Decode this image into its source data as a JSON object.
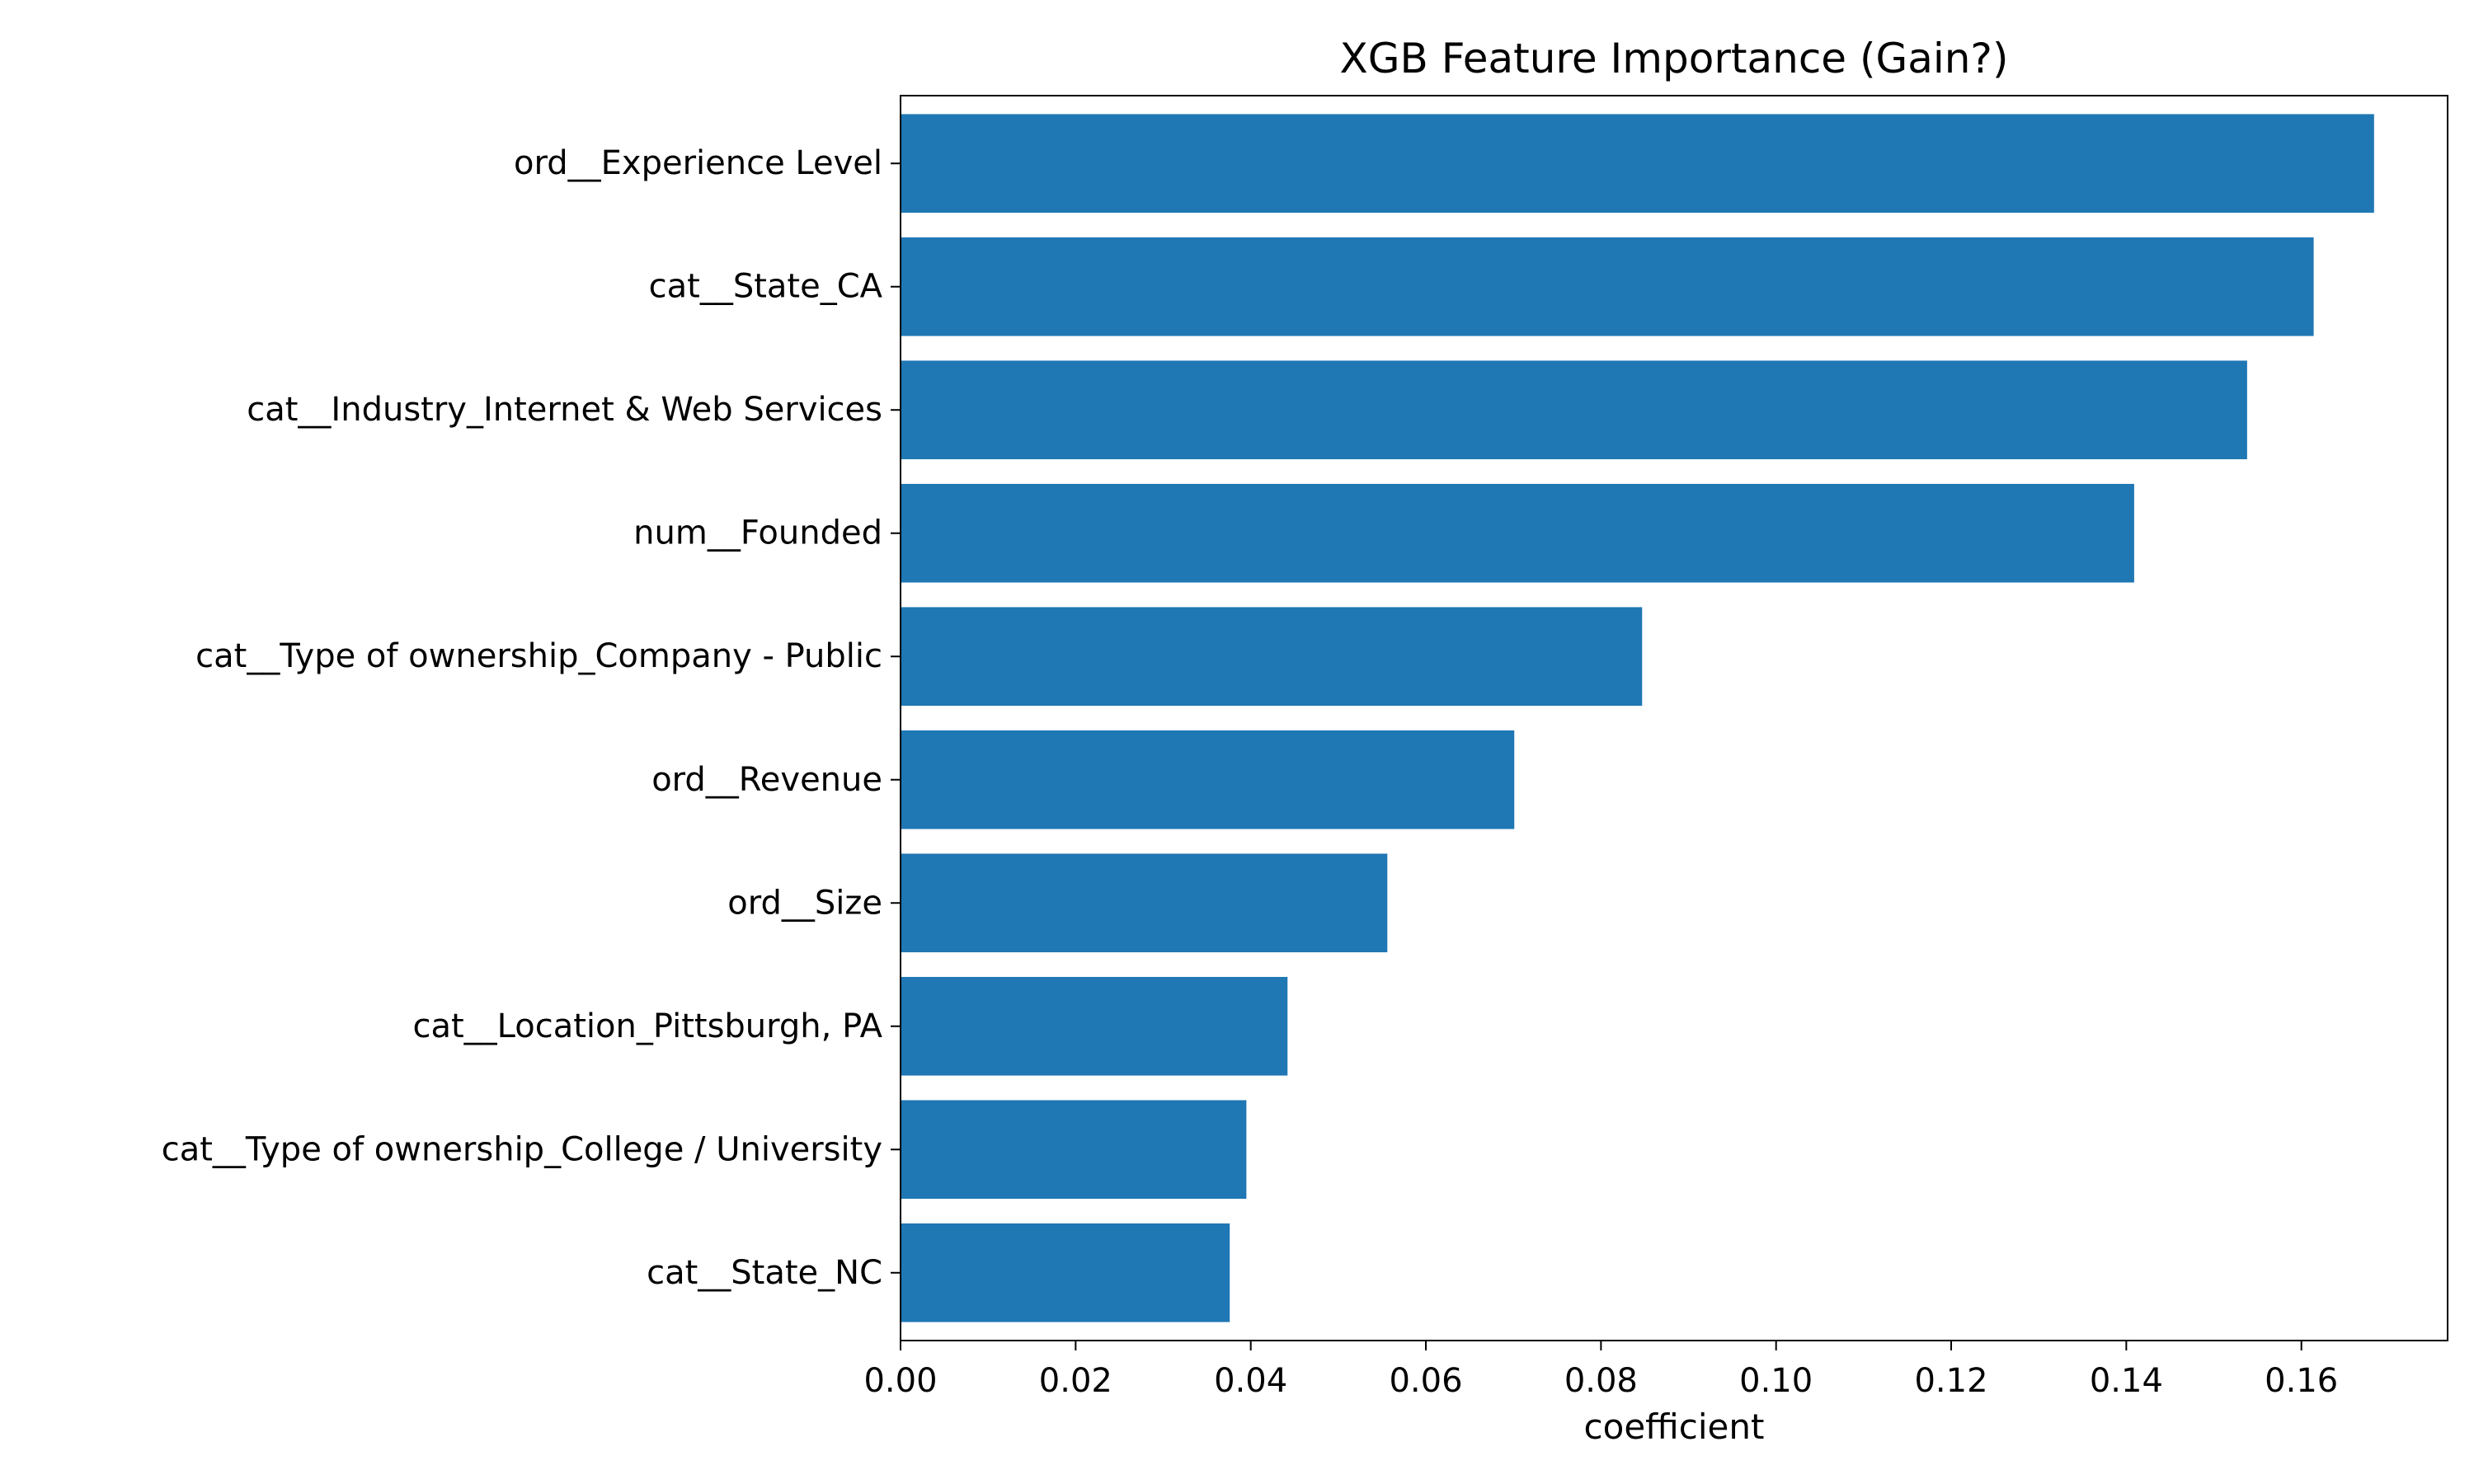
{
  "chart_data": {
    "type": "bar",
    "orientation": "horizontal",
    "title": "XGB Feature Importance (Gain?)",
    "xlabel": "coefficient",
    "ylabel": "",
    "categories": [
      "ord__Experience Level",
      "cat__State_CA",
      "cat__Industry_Internet & Web Services",
      "num__Founded",
      "cat__Type of ownership_Company - Public",
      "ord__Revenue",
      "ord__Size",
      "cat__Location_Pittsburgh, PA",
      "cat__Type of ownership_College / University",
      "cat__State_NC"
    ],
    "values": [
      0.1683,
      0.1614,
      0.1538,
      0.1409,
      0.0847,
      0.0701,
      0.0556,
      0.0442,
      0.0395,
      0.0376
    ],
    "xlim": [
      0,
      0.1767
    ],
    "xticks": [
      0.0,
      0.02,
      0.04,
      0.06,
      0.08,
      0.1,
      0.12,
      0.14,
      0.16
    ],
    "xtick_labels": [
      "0.00",
      "0.02",
      "0.04",
      "0.06",
      "0.08",
      "0.10",
      "0.12",
      "0.14",
      "0.16"
    ],
    "bar_color": "#1f77b4",
    "grid": false,
    "legend": "none"
  }
}
